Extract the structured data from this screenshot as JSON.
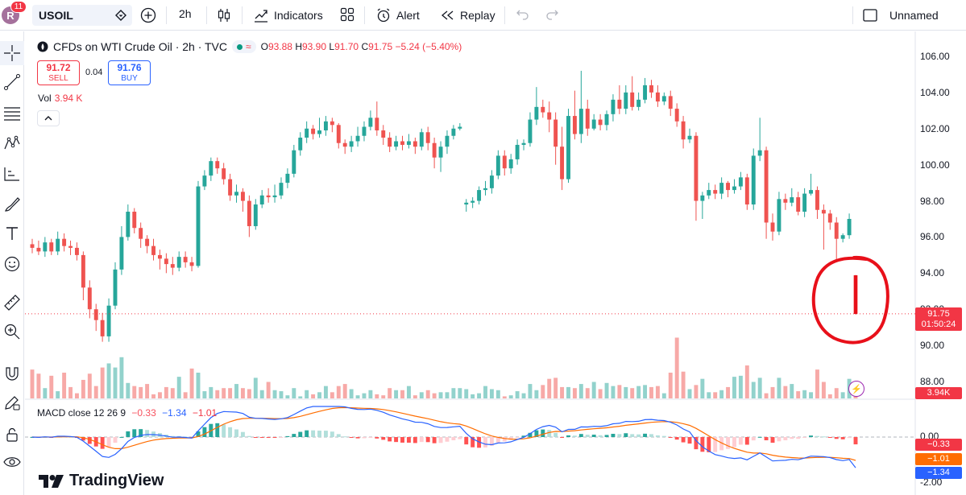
{
  "toolbar": {
    "avatar_letter": "R",
    "notifications": "11",
    "symbol": "USOIL",
    "interval": "2h",
    "indicators": "Indicators",
    "alert": "Alert",
    "replay": "Replay",
    "layout_name": "Unnamed"
  },
  "legend": {
    "title": "CFDs on WTI Crude Oil · 2h · TVC",
    "open_label": "O",
    "open": "93.88",
    "high_label": "H",
    "high": "93.90",
    "low_label": "L",
    "low": "91.70",
    "close_label": "C",
    "close": "91.75",
    "change": "−5.24 (−5.40%)",
    "sell_price": "91.72",
    "sell_label": "SELL",
    "spread": "0.04",
    "buy_price": "91.76",
    "buy_label": "BUY",
    "vol_label": "Vol",
    "vol_value": "3.94 K"
  },
  "macd": {
    "label": "MACD close 12 26 9",
    "v1": "−0.33",
    "v2": "−1.34",
    "v3": "−1.01"
  },
  "price_axis": {
    "ticks": [
      "106.00",
      "104.00",
      "102.00",
      "100.00",
      "98.00",
      "96.00",
      "94.00",
      "92.00",
      "90.00",
      "88.00"
    ],
    "last_price": "91.75",
    "countdown": "01:50:24",
    "volume_tag": "3.94K",
    "macd_ticks": [
      "0.00",
      "-2.00"
    ],
    "macd_tags": [
      "−0.33",
      "−1.01",
      "−1.34"
    ]
  },
  "branding": {
    "logo_text": "TradingView"
  },
  "colors": {
    "up": "#26a69a",
    "down": "#ef5350",
    "macd_line": "#2962ff",
    "signal_line": "#ff6d00",
    "annotation": "#e8101a"
  },
  "chart_data": {
    "type": "candlestick",
    "symbol": "USOIL",
    "interval": "2h",
    "ylim": [
      87,
      107
    ],
    "y_ticks": [
      88,
      90,
      92,
      94,
      96,
      98,
      100,
      102,
      104,
      106
    ],
    "last_price": 91.75,
    "candles": [
      [
        95.6,
        95.4,
        95.9,
        95.1
      ],
      [
        95.4,
        95.2,
        95.8,
        95.0
      ],
      [
        95.2,
        95.7,
        96.0,
        94.9
      ],
      [
        95.7,
        95.2,
        95.9,
        95.0
      ],
      [
        95.2,
        95.9,
        96.3,
        95.0
      ],
      [
        95.9,
        95.5,
        96.2,
        95.2
      ],
      [
        95.5,
        95.4,
        95.8,
        95.0
      ],
      [
        95.4,
        95.0,
        95.7,
        94.7
      ],
      [
        95.0,
        93.2,
        95.2,
        92.5
      ],
      [
        93.2,
        92.0,
        93.6,
        91.5
      ],
      [
        92.0,
        91.4,
        92.3,
        90.8
      ],
      [
        91.4,
        90.5,
        91.8,
        90.2
      ],
      [
        90.5,
        92.2,
        92.6,
        90.2
      ],
      [
        92.2,
        94.2,
        94.6,
        92.0
      ],
      [
        94.2,
        96.0,
        96.6,
        93.9
      ],
      [
        96.0,
        97.4,
        97.8,
        95.8
      ],
      [
        97.4,
        96.5,
        97.6,
        96.2
      ],
      [
        96.5,
        95.9,
        96.8,
        95.4
      ],
      [
        95.9,
        95.5,
        96.1,
        95.1
      ],
      [
        95.5,
        95.0,
        95.9,
        94.7
      ],
      [
        95.0,
        94.8,
        95.3,
        94.2
      ],
      [
        94.8,
        94.5,
        95.1,
        94.0
      ],
      [
        94.5,
        94.3,
        94.9,
        93.9
      ],
      [
        94.3,
        94.9,
        95.2,
        94.1
      ],
      [
        94.9,
        94.6,
        95.2,
        94.3
      ],
      [
        94.6,
        94.4,
        94.9,
        94.1
      ],
      [
        94.4,
        98.8,
        99.1,
        94.3
      ],
      [
        98.8,
        99.4,
        99.7,
        98.6
      ],
      [
        99.4,
        100.2,
        100.4,
        99.1
      ],
      [
        100.2,
        99.8,
        100.4,
        99.5
      ],
      [
        99.8,
        99.2,
        100.1,
        98.9
      ],
      [
        99.2,
        98.3,
        99.5,
        98.0
      ],
      [
        98.3,
        98.5,
        98.9,
        97.9
      ],
      [
        98.5,
        98.0,
        98.7,
        97.4
      ],
      [
        98.0,
        96.6,
        98.3,
        96.0
      ],
      [
        96.6,
        97.8,
        98.1,
        96.4
      ],
      [
        97.8,
        98.3,
        98.6,
        97.6
      ],
      [
        98.3,
        98.2,
        98.7,
        97.9
      ],
      [
        98.2,
        98.3,
        98.9,
        97.9
      ],
      [
        98.3,
        99.0,
        99.3,
        98.1
      ],
      [
        99.0,
        99.5,
        99.8,
        98.7
      ],
      [
        99.5,
        100.8,
        101.1,
        99.3
      ],
      [
        100.8,
        101.5,
        101.8,
        100.5
      ],
      [
        101.5,
        102.0,
        102.4,
        101.2
      ],
      [
        102.0,
        101.7,
        102.2,
        101.4
      ],
      [
        101.7,
        101.9,
        102.6,
        101.5
      ],
      [
        101.9,
        102.4,
        102.7,
        101.6
      ],
      [
        102.4,
        102.2,
        102.6,
        101.8
      ],
      [
        102.2,
        101.2,
        102.3,
        100.9
      ],
      [
        101.2,
        101.0,
        101.4,
        100.6
      ],
      [
        101.0,
        101.3,
        101.6,
        100.7
      ],
      [
        101.3,
        101.6,
        102.1,
        101.0
      ],
      [
        101.6,
        102.1,
        102.4,
        101.3
      ],
      [
        102.1,
        102.6,
        103.0,
        101.9
      ],
      [
        102.6,
        101.9,
        103.5,
        101.6
      ],
      [
        101.9,
        101.5,
        102.2,
        101.1
      ],
      [
        101.5,
        101.0,
        101.8,
        100.7
      ],
      [
        101.0,
        101.3,
        101.6,
        100.8
      ],
      [
        101.3,
        101.1,
        101.6,
        100.8
      ],
      [
        101.1,
        101.3,
        101.7,
        100.9
      ],
      [
        101.3,
        101.0,
        101.5,
        100.6
      ],
      [
        101.0,
        101.8,
        102.0,
        100.8
      ],
      [
        101.8,
        101.2,
        102.1,
        100.8
      ],
      [
        101.2,
        100.4,
        101.5,
        99.8
      ],
      [
        100.4,
        101.0,
        101.3,
        99.6
      ],
      [
        101.0,
        101.6,
        101.9,
        100.6
      ],
      [
        101.6,
        102.0,
        102.2,
        101.4
      ],
      [
        102.0,
        102.1,
        102.3,
        101.9
      ],
      [
        97.8,
        97.9,
        98.1,
        97.4
      ],
      [
        97.9,
        98.0,
        98.2,
        97.6
      ],
      [
        98.0,
        98.6,
        98.8,
        97.8
      ],
      [
        98.6,
        98.7,
        99.1,
        98.3
      ],
      [
        98.7,
        99.4,
        99.7,
        98.4
      ],
      [
        99.4,
        100.5,
        100.8,
        99.2
      ],
      [
        100.5,
        99.8,
        100.8,
        99.4
      ],
      [
        99.8,
        100.3,
        100.6,
        99.5
      ],
      [
        100.3,
        101.1,
        101.4,
        100.0
      ],
      [
        101.1,
        101.2,
        101.4,
        100.8
      ],
      [
        101.2,
        102.5,
        102.9,
        101.0
      ],
      [
        102.5,
        103.2,
        104.3,
        102.2
      ],
      [
        103.2,
        102.9,
        103.6,
        102.6
      ],
      [
        102.9,
        102.5,
        103.5,
        101.8
      ],
      [
        102.5,
        101.0,
        102.9,
        100.0
      ],
      [
        101.0,
        99.2,
        102.1,
        98.6
      ],
      [
        99.2,
        102.7,
        103.1,
        99.0
      ],
      [
        102.7,
        101.7,
        104.1,
        101.4
      ],
      [
        101.7,
        103.1,
        105.2,
        101.2
      ],
      [
        103.1,
        102.0,
        103.6,
        101.6
      ],
      [
        102.0,
        102.5,
        102.8,
        101.9
      ],
      [
        102.5,
        102.2,
        102.8,
        101.9
      ],
      [
        102.2,
        102.8,
        103.0,
        101.9
      ],
      [
        102.8,
        103.6,
        103.9,
        102.4
      ],
      [
        103.6,
        103.1,
        104.4,
        102.8
      ],
      [
        103.1,
        104.0,
        104.4,
        102.8
      ],
      [
        104.0,
        103.2,
        104.9,
        103.0
      ],
      [
        103.2,
        103.6,
        104.0,
        103.0
      ],
      [
        103.6,
        104.4,
        104.8,
        103.4
      ],
      [
        104.4,
        104.0,
        104.7,
        103.7
      ],
      [
        104.0,
        103.5,
        104.4,
        103.2
      ],
      [
        103.5,
        103.8,
        104.0,
        103.3
      ],
      [
        103.8,
        103.1,
        104.1,
        102.7
      ],
      [
        103.1,
        102.4,
        103.4,
        102.1
      ],
      [
        102.4,
        101.4,
        102.7,
        100.9
      ],
      [
        101.4,
        101.6,
        102.0,
        101.2
      ],
      [
        101.6,
        98.0,
        101.8,
        96.9
      ],
      [
        98.0,
        98.3,
        98.5,
        97.0
      ],
      [
        98.3,
        98.6,
        99.0,
        98.1
      ],
      [
        98.6,
        98.4,
        98.9,
        98.1
      ],
      [
        98.4,
        99.0,
        99.3,
        98.1
      ],
      [
        99.0,
        98.6,
        99.1,
        98.2
      ],
      [
        98.6,
        98.8,
        99.2,
        98.4
      ],
      [
        98.8,
        99.3,
        99.6,
        98.6
      ],
      [
        99.3,
        97.8,
        99.5,
        97.5
      ],
      [
        97.8,
        100.5,
        100.9,
        97.5
      ],
      [
        100.5,
        100.8,
        102.6,
        100.2
      ],
      [
        100.8,
        96.8,
        101.0,
        95.9
      ],
      [
        96.8,
        96.3,
        97.3,
        95.8
      ],
      [
        96.3,
        98.1,
        98.5,
        96.1
      ],
      [
        98.1,
        97.9,
        98.4,
        97.5
      ],
      [
        97.9,
        98.2,
        98.7,
        97.7
      ],
      [
        98.2,
        97.4,
        98.5,
        97.2
      ],
      [
        97.4,
        98.4,
        98.7,
        97.1
      ],
      [
        98.4,
        98.6,
        99.5,
        98.3
      ],
      [
        98.6,
        97.5,
        98.8,
        97.0
      ],
      [
        97.5,
        97.3,
        97.8,
        95.3
      ],
      [
        97.3,
        96.8,
        97.5,
        96.4
      ],
      [
        96.8,
        95.9,
        97.1,
        94.6
      ],
      [
        95.9,
        96.1,
        96.2,
        95.7
      ],
      [
        96.1,
        97.0,
        97.3,
        95.9
      ],
      [
        93.88,
        91.75,
        93.9,
        91.7
      ]
    ],
    "volume": [
      28,
      24,
      10,
      22,
      7,
      25,
      11,
      5,
      18,
      24,
      12,
      30,
      34,
      30,
      40,
      15,
      12,
      11,
      14,
      4,
      6,
      11,
      10,
      21,
      6,
      29,
      25,
      7,
      11,
      8,
      10,
      10,
      14,
      10,
      9,
      20,
      8,
      16,
      8,
      7,
      3,
      10,
      2,
      8,
      4,
      6,
      12,
      6,
      12,
      14,
      9,
      3,
      5,
      8,
      4,
      3,
      10,
      8,
      8,
      12,
      3,
      6,
      8,
      5,
      6,
      6,
      10,
      10,
      9,
      4,
      5,
      12,
      9,
      8,
      2,
      3,
      7,
      5,
      14,
      8,
      13,
      19,
      20,
      11,
      11,
      10,
      14,
      10,
      16,
      9,
      15,
      12,
      13,
      11,
      10,
      12,
      13,
      11,
      12,
      5,
      25,
      59,
      26,
      9,
      13,
      19,
      6,
      6,
      8,
      11,
      21,
      22,
      32,
      16,
      20,
      5,
      11,
      20,
      12,
      14,
      7,
      8,
      6,
      28,
      16,
      4,
      10,
      6,
      19
    ],
    "macd_series": {
      "names": [
        "MACD",
        "Signal",
        "Histogram"
      ],
      "macd_last": -1.34,
      "signal_last": -1.01,
      "histogram_last": -0.33
    }
  }
}
